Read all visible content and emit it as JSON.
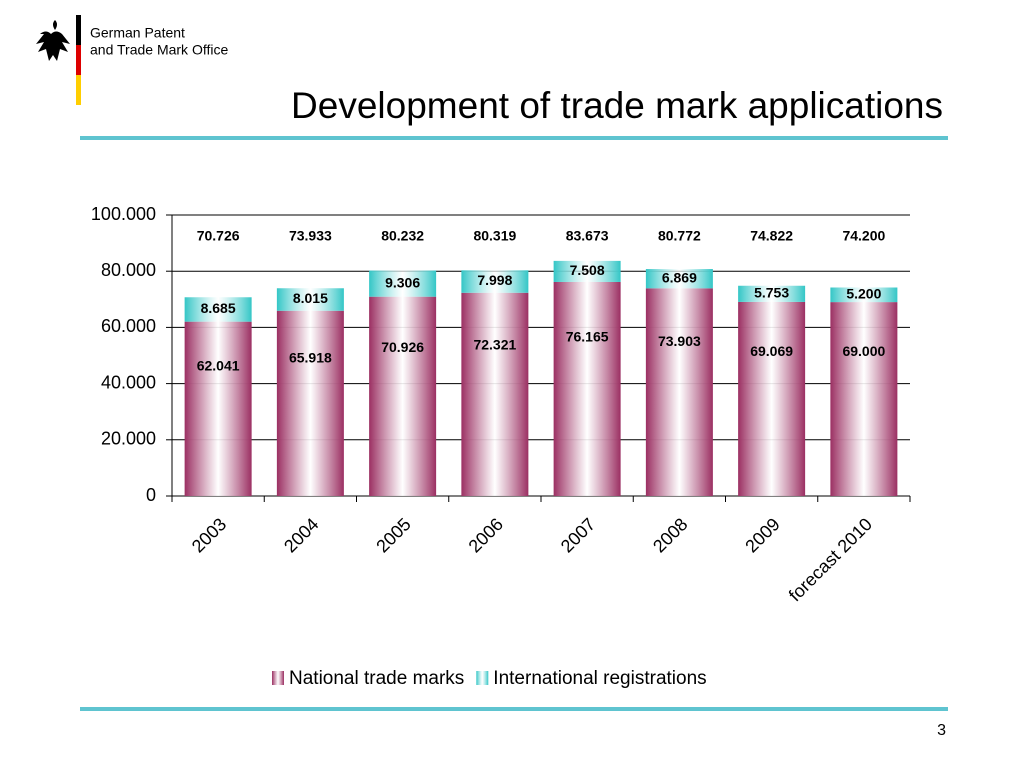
{
  "header": {
    "org_line1": "German Patent",
    "org_line2": "and Trade Mark Office",
    "page_number": "3"
  },
  "chart_data": {
    "type": "stacked-bar",
    "title": "Development of trade mark applications",
    "categories": [
      "2003",
      "2004",
      "2005",
      "2006",
      "2007",
      "2008",
      "2009",
      "forecast 2010"
    ],
    "series": [
      {
        "name": "National trade marks",
        "color": "#9b2f62",
        "values": [
          62041,
          65918,
          70926,
          72321,
          76165,
          73903,
          69069,
          69000
        ],
        "value_labels": [
          "62.041",
          "65.918",
          "70.926",
          "72.321",
          "76.165",
          "73.903",
          "69.069",
          "69.000"
        ]
      },
      {
        "name": "International registrations",
        "color": "#33c6c6",
        "values": [
          8685,
          8015,
          9306,
          7998,
          7508,
          6869,
          5753,
          5200
        ],
        "value_labels": [
          "8.685",
          "8.015",
          "9.306",
          "7.998",
          "7.508",
          "6.869",
          "5.753",
          "5.200"
        ]
      }
    ],
    "totals": {
      "values": [
        70726,
        73933,
        80232,
        80319,
        83673,
        80772,
        74822,
        74200
      ],
      "value_labels": [
        "70.726",
        "73.933",
        "80.232",
        "80.319",
        "83.673",
        "80.772",
        "74.822",
        "74.200"
      ]
    },
    "ylim": [
      0,
      100000
    ],
    "yticks": [
      0,
      {
        "value": 20000,
        "label": "20.000"
      },
      {
        "value": 40000,
        "label": "40.000"
      },
      {
        "value": 60000,
        "label": "60.000"
      },
      {
        "value": 80000,
        "label": "80.000"
      },
      {
        "value": 100000,
        "label": "100.000"
      }
    ],
    "grid": true,
    "legend": "bottom"
  }
}
